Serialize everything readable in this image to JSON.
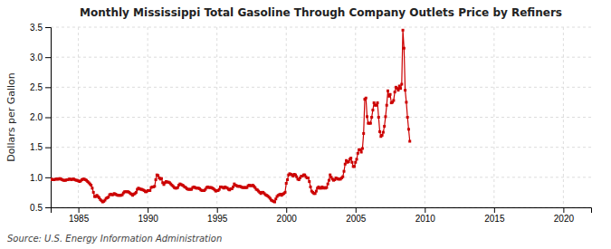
{
  "chart_data": {
    "type": "line",
    "title": "Monthly Mississippi Total Gasoline Through Company Outlets Price by Refiners",
    "ylabel": "Dollars per Gallon",
    "annotations": [
      "Source: U.S. Energy Information Administration"
    ],
    "color": "#cc0000",
    "marker": "square",
    "line_style": "solid",
    "grid": true,
    "xlim": [
      1983,
      2022
    ],
    "ylim": [
      0.5,
      3.5
    ],
    "xticks": [
      1985,
      1990,
      1995,
      2000,
      2005,
      2010,
      2015,
      2020
    ],
    "yticks": [
      0.5,
      {
        "value": 1,
        "label": "1.0"
      },
      1.5,
      {
        "value": 2,
        "label": "2.0"
      },
      2.5,
      {
        "value": 3,
        "label": "3.0"
      },
      3.5
    ],
    "x": [
      1983,
      1983.0833,
      1983.1667,
      1983.25,
      1983.3333,
      1983.4167,
      1983.5,
      1983.5833,
      1983.6667,
      1983.75,
      1983.8333,
      1983.9167,
      1984,
      1984.0833,
      1984.1667,
      1984.25,
      1984.3333,
      1984.4167,
      1984.5,
      1984.5833,
      1984.6667,
      1984.75,
      1984.8333,
      1984.9167,
      1985,
      1985.0833,
      1985.1667,
      1985.25,
      1985.3333,
      1985.4167,
      1985.5,
      1985.5833,
      1985.6667,
      1985.75,
      1985.8333,
      1985.9167,
      1986,
      1986.0833,
      1986.1667,
      1986.25,
      1986.3333,
      1986.4167,
      1986.5,
      1986.5833,
      1986.6667,
      1986.75,
      1986.8333,
      1986.9167,
      1987,
      1987.0833,
      1987.1667,
      1987.25,
      1987.3333,
      1987.4167,
      1987.5,
      1987.5833,
      1987.6667,
      1987.75,
      1987.8333,
      1987.9167,
      1988,
      1988.0833,
      1988.1667,
      1988.25,
      1988.3333,
      1988.4167,
      1988.5,
      1988.5833,
      1988.6667,
      1988.75,
      1988.8333,
      1988.9167,
      1989,
      1989.0833,
      1989.1667,
      1989.25,
      1989.3333,
      1989.4167,
      1989.5,
      1989.5833,
      1989.6667,
      1989.75,
      1989.8333,
      1989.9167,
      1990,
      1990.0833,
      1990.1667,
      1990.25,
      1990.3333,
      1990.4167,
      1990.5,
      1990.5833,
      1990.6667,
      1990.75,
      1990.8333,
      1990.9167,
      1991,
      1991.0833,
      1991.1667,
      1991.25,
      1991.3333,
      1991.4167,
      1991.5,
      1991.5833,
      1991.6667,
      1991.75,
      1991.8333,
      1991.9167,
      1992,
      1992.0833,
      1992.1667,
      1992.25,
      1992.3333,
      1992.4167,
      1992.5,
      1992.5833,
      1992.6667,
      1992.75,
      1992.8333,
      1992.9167,
      1993,
      1993.0833,
      1993.1667,
      1993.25,
      1993.3333,
      1993.4167,
      1993.5,
      1993.5833,
      1993.6667,
      1993.75,
      1993.8333,
      1993.9167,
      1994,
      1994.0833,
      1994.1667,
      1994.25,
      1994.3333,
      1994.4167,
      1994.5,
      1994.5833,
      1994.6667,
      1994.75,
      1994.8333,
      1994.9167,
      1995,
      1995.0833,
      1995.1667,
      1995.25,
      1995.3333,
      1995.4167,
      1995.5,
      1995.5833,
      1995.6667,
      1995.75,
      1995.8333,
      1995.9167,
      1996,
      1996.0833,
      1996.1667,
      1996.25,
      1996.3333,
      1996.4167,
      1996.5,
      1996.5833,
      1996.6667,
      1996.75,
      1996.8333,
      1996.9167,
      1997,
      1997.0833,
      1997.1667,
      1997.25,
      1997.3333,
      1997.4167,
      1997.5,
      1997.5833,
      1997.6667,
      1997.75,
      1997.8333,
      1997.9167,
      1998,
      1998.0833,
      1998.1667,
      1998.25,
      1998.3333,
      1998.4167,
      1998.5,
      1998.5833,
      1998.6667,
      1998.75,
      1998.8333,
      1998.9167,
      1999,
      1999.0833,
      1999.1667,
      1999.25,
      1999.3333,
      1999.4167,
      1999.5,
      1999.5833,
      1999.6667,
      1999.75,
      1999.8333,
      1999.9167,
      2000,
      2000.0833,
      2000.1667,
      2000.25,
      2000.3333,
      2000.4167,
      2000.5,
      2000.5833,
      2000.6667,
      2000.75,
      2000.8333,
      2000.9167,
      2001,
      2001.0833,
      2001.1667,
      2001.25,
      2001.3333,
      2001.4167,
      2001.5,
      2001.5833,
      2001.6667,
      2001.75,
      2001.8333,
      2001.9167,
      2002,
      2002.0833,
      2002.1667,
      2002.25,
      2002.3333,
      2002.4167,
      2002.5,
      2002.5833,
      2002.6667,
      2002.75,
      2002.8333,
      2002.9167,
      2003,
      2003.0833,
      2003.1667,
      2003.25,
      2003.3333,
      2003.4167,
      2003.5,
      2003.5833,
      2003.6667,
      2003.75,
      2003.8333,
      2003.9167,
      2004,
      2004.0833,
      2004.1667,
      2004.25,
      2004.3333,
      2004.4167,
      2004.5,
      2004.5833,
      2004.6667,
      2004.75,
      2004.8333,
      2004.9167,
      2005,
      2005.0833,
      2005.1667,
      2005.25,
      2005.3333,
      2005.4167,
      2005.5,
      2005.5833,
      2005.6667,
      2005.75,
      2005.8333,
      2005.9167,
      2006,
      2006.0833,
      2006.1667,
      2006.25,
      2006.3333,
      2006.4167,
      2006.5,
      2006.5833,
      2006.6667,
      2006.75,
      2006.8333,
      2006.9167,
      2007,
      2007.0833,
      2007.1667,
      2007.25,
      2007.3333,
      2007.4167,
      2007.5,
      2007.5833,
      2007.6667,
      2007.75,
      2007.8333,
      2007.9167,
      2008,
      2008.0833,
      2008.1667,
      2008.25,
      2008.3333,
      2008.4167,
      2008.5,
      2008.5833,
      2008.6667,
      2008.75,
      2008.8333,
      2008.9167
    ],
    "values": [
      0.96,
      0.97,
      0.96,
      0.96,
      0.97,
      0.97,
      0.97,
      0.97,
      0.98,
      0.97,
      0.96,
      0.95,
      0.95,
      0.95,
      0.96,
      0.96,
      0.97,
      0.97,
      0.96,
      0.97,
      0.97,
      0.96,
      0.95,
      0.95,
      0.94,
      0.93,
      0.94,
      0.96,
      0.97,
      0.97,
      0.96,
      0.95,
      0.93,
      0.91,
      0.89,
      0.87,
      0.82,
      0.75,
      0.68,
      0.68,
      0.7,
      0.68,
      0.66,
      0.63,
      0.61,
      0.59,
      0.6,
      0.62,
      0.65,
      0.66,
      0.67,
      0.71,
      0.72,
      0.71,
      0.71,
      0.73,
      0.72,
      0.71,
      0.7,
      0.7,
      0.7,
      0.7,
      0.71,
      0.74,
      0.76,
      0.76,
      0.76,
      0.76,
      0.75,
      0.73,
      0.72,
      0.7,
      0.72,
      0.73,
      0.75,
      0.8,
      0.82,
      0.81,
      0.8,
      0.8,
      0.79,
      0.78,
      0.76,
      0.76,
      0.78,
      0.78,
      0.78,
      0.83,
      0.84,
      0.84,
      0.85,
      0.96,
      1.04,
      1.03,
      0.99,
      0.97,
      0.98,
      0.91,
      0.88,
      0.91,
      0.93,
      0.92,
      0.92,
      0.91,
      0.89,
      0.87,
      0.85,
      0.83,
      0.82,
      0.82,
      0.83,
      0.87,
      0.89,
      0.88,
      0.87,
      0.86,
      0.84,
      0.83,
      0.81,
      0.8,
      0.8,
      0.8,
      0.8,
      0.83,
      0.84,
      0.83,
      0.82,
      0.82,
      0.82,
      0.81,
      0.79,
      0.78,
      0.78,
      0.78,
      0.8,
      0.83,
      0.84,
      0.83,
      0.83,
      0.83,
      0.82,
      0.81,
      0.79,
      0.77,
      0.78,
      0.78,
      0.8,
      0.84,
      0.84,
      0.83,
      0.82,
      0.84,
      0.83,
      0.82,
      0.8,
      0.79,
      0.81,
      0.81,
      0.84,
      0.89,
      0.87,
      0.86,
      0.85,
      0.85,
      0.85,
      0.84,
      0.83,
      0.83,
      0.83,
      0.83,
      0.83,
      0.86,
      0.87,
      0.86,
      0.86,
      0.87,
      0.85,
      0.83,
      0.8,
      0.79,
      0.77,
      0.75,
      0.73,
      0.75,
      0.75,
      0.73,
      0.71,
      0.7,
      0.69,
      0.67,
      0.65,
      0.62,
      0.61,
      0.6,
      0.59,
      0.64,
      0.68,
      0.7,
      0.71,
      0.72,
      0.7,
      0.72,
      0.73,
      0.75,
      0.9,
      0.96,
      1.04,
      1.06,
      1.05,
      1.04,
      1.02,
      1.05,
      1.04,
      1.01,
      0.97,
      0.96,
      0.99,
      1.02,
      1.02,
      1.04,
      1.04,
      1.01,
      0.99,
      0.99,
      0.93,
      0.84,
      0.77,
      0.75,
      0.73,
      0.73,
      0.77,
      0.82,
      0.84,
      0.82,
      0.82,
      0.84,
      0.82,
      0.83,
      0.82,
      0.83,
      0.89,
      0.95,
      1.04,
      1.0,
      0.97,
      0.95,
      0.96,
      0.99,
      0.98,
      0.97,
      0.97,
      0.97,
      0.99,
      1.01,
      1.1,
      1.22,
      1.28,
      1.25,
      1.26,
      1.3,
      1.32,
      1.25,
      1.18,
      1.18,
      1.25,
      1.3,
      1.4,
      1.46,
      1.46,
      1.42,
      1.48,
      1.73,
      2.3,
      2.32,
      2.01,
      1.9,
      1.9,
      1.9,
      2.0,
      2.12,
      2.24,
      2.2,
      2.2,
      2.24,
      2.0,
      1.76,
      1.68,
      1.7,
      1.75,
      1.85,
      2.01,
      2.2,
      2.44,
      2.35,
      2.38,
      2.24,
      2.25,
      2.28,
      2.42,
      2.5,
      2.48,
      2.45,
      2.52,
      2.48,
      2.55,
      3.45,
      3.15,
      2.45,
      2.25,
      2.0,
      1.8,
      1.6
    ]
  }
}
